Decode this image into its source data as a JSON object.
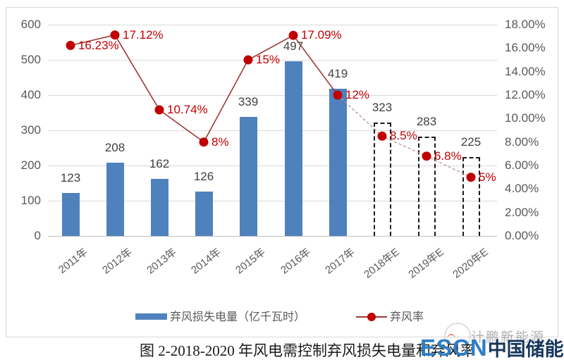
{
  "chart_data": {
    "type": "combo-bar-line",
    "categories": [
      "2011年",
      "2012年",
      "2013年",
      "2014年",
      "2015年",
      "2016年",
      "2017年",
      "2018年E",
      "2019年E",
      "2020年E"
    ],
    "series": [
      {
        "name": "弃风损失电量（亿千瓦时）",
        "type": "bar",
        "axis": "left",
        "values": [
          123,
          208,
          162,
          126,
          339,
          497,
          419,
          323,
          283,
          225
        ],
        "forecast_start_index": 7
      },
      {
        "name": "弃风率",
        "type": "line",
        "axis": "right",
        "values": [
          16.23,
          17.12,
          10.74,
          8,
          15,
          17.09,
          12,
          8.5,
          6.8,
          5
        ],
        "point_labels": [
          "16.23%",
          "17.12%",
          "10.74%",
          "8%",
          "15%",
          "17.09%",
          "12%",
          "8.5%",
          "6.8%",
          "5%"
        ],
        "dashed_start_index": 6
      }
    ],
    "left_axis": {
      "min": 0,
      "max": 600,
      "ticks": [
        "600",
        "500",
        "400",
        "300",
        "200",
        "100",
        "0"
      ]
    },
    "right_axis": {
      "min": 0,
      "max": 18,
      "ticks": [
        "18.00%",
        "16.00%",
        "14.00%",
        "12.00%",
        "10.00%",
        "8.00%",
        "6.00%",
        "4.00%",
        "2.00%",
        "0.00%"
      ]
    },
    "grid": true,
    "legend_position": "bottom",
    "title": "图 2-2018-2020 年风电需控制弃风损失电量和弃风率"
  },
  "legend": {
    "bar_label": "弃风损失电量（亿千瓦时）",
    "line_label": "弃风率"
  },
  "caption": "图 2-2018-2020 年风电需控制弃风损失电量和弃风率",
  "watermark": {
    "text": "计鹏新能源"
  },
  "logo": {
    "escn": "ESCN",
    "cn": "中国储能网"
  },
  "colors": {
    "bar": "#4f81bd",
    "line_solid": "#9c3a34",
    "line_dashed": "#b89290",
    "dot": "#c00000",
    "pct_label": "#c00000",
    "value_label": "#404040",
    "axis_label": "#595959",
    "gridline": "#d9d9d9",
    "axis_line": "#bfbfbf",
    "forecast_outline": "#1a1a1a",
    "logo_blue": "#2e7ec6",
    "logo_navy": "#16365c"
  }
}
